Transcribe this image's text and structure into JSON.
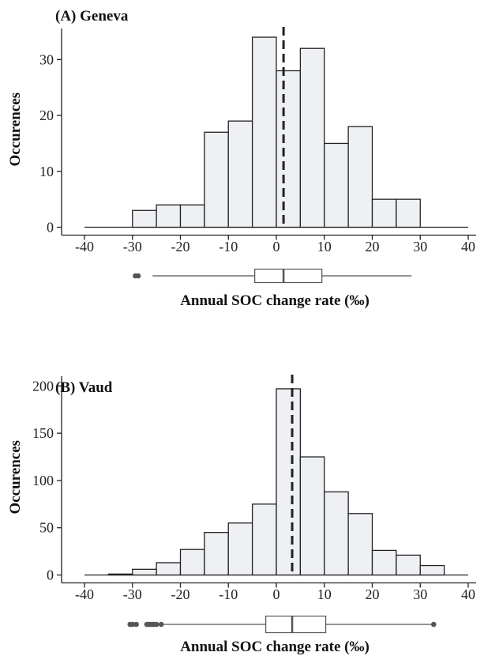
{
  "chart_data": [
    {
      "type": "bar",
      "title": "(A) Geneva",
      "xlabel": "Annual SOC change rate (‰)",
      "ylabel": "Occurences",
      "xlim": [
        -40,
        40
      ],
      "ylim": [
        0,
        35
      ],
      "xticks": [
        -40,
        -30,
        -20,
        -10,
        0,
        10,
        20,
        30,
        40
      ],
      "yticks": [
        0,
        10,
        20,
        30
      ],
      "bins": [
        {
          "start": -30,
          "end": -25,
          "count": 3
        },
        {
          "start": -25,
          "end": -20,
          "count": 4
        },
        {
          "start": -20,
          "end": -15,
          "count": 4
        },
        {
          "start": -15,
          "end": -10,
          "count": 17
        },
        {
          "start": -10,
          "end": -5,
          "count": 19
        },
        {
          "start": -5,
          "end": 0,
          "count": 34
        },
        {
          "start": 0,
          "end": 5,
          "count": 28
        },
        {
          "start": 5,
          "end": 10,
          "count": 32
        },
        {
          "start": 10,
          "end": 15,
          "count": 15
        },
        {
          "start": 15,
          "end": 20,
          "count": 18
        },
        {
          "start": 20,
          "end": 25,
          "count": 5
        },
        {
          "start": 25,
          "end": 30,
          "count": 5
        }
      ],
      "mean": 1.5,
      "boxplot": {
        "whisker_low": -25.8,
        "q1": -4.5,
        "median": 1.5,
        "q3": 9.5,
        "whisker_high": 28.2,
        "outliers": [
          -28.8,
          -29.4
        ]
      }
    },
    {
      "type": "bar",
      "title": "(B) Vaud",
      "xlabel": "Annual SOC change rate (‰)",
      "ylabel": "Occurences",
      "xlim": [
        -40,
        40
      ],
      "ylim": [
        0,
        207
      ],
      "xticks": [
        -40,
        -30,
        -20,
        -10,
        0,
        10,
        20,
        30,
        40
      ],
      "yticks": [
        0,
        50,
        100,
        150,
        200
      ],
      "bins": [
        {
          "start": -35,
          "end": -30,
          "count": 1
        },
        {
          "start": -30,
          "end": -25,
          "count": 6
        },
        {
          "start": -25,
          "end": -20,
          "count": 13
        },
        {
          "start": -20,
          "end": -15,
          "count": 27
        },
        {
          "start": -15,
          "end": -10,
          "count": 45
        },
        {
          "start": -10,
          "end": -5,
          "count": 55
        },
        {
          "start": -5,
          "end": 0,
          "count": 75
        },
        {
          "start": 0,
          "end": 5,
          "count": 197
        },
        {
          "start": 5,
          "end": 10,
          "count": 125
        },
        {
          "start": 10,
          "end": 15,
          "count": 88
        },
        {
          "start": 15,
          "end": 20,
          "count": 65
        },
        {
          "start": 20,
          "end": 25,
          "count": 26
        },
        {
          "start": 25,
          "end": 30,
          "count": 21
        },
        {
          "start": 30,
          "end": 35,
          "count": 10
        }
      ],
      "mean": 3.3,
      "boxplot": {
        "whisker_low": -25.5,
        "q1": -2.2,
        "median": 3.3,
        "q3": 10.3,
        "whisker_high": 32.5,
        "outliers": [
          -30.5,
          -30.0,
          -29.2,
          -27.0,
          -26.5,
          -26.2,
          -25.8,
          -25.6,
          -25.0,
          -24.0,
          32.8
        ]
      }
    }
  ]
}
